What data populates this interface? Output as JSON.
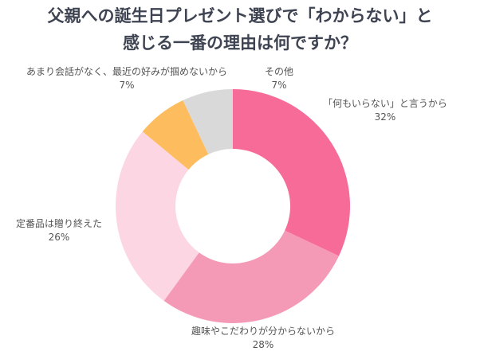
{
  "chart_data": {
    "type": "pie",
    "donut": true,
    "title_lines": [
      "父親への誕生日プレゼント選びで「わからない」と",
      "感じる一番の理由は何ですか？"
    ],
    "slices": [
      {
        "label": "「何もいらない」と言うから",
        "value": 32,
        "value_label": "32%",
        "color": "#F76B98"
      },
      {
        "label": "趣味やこだわりが分からないから",
        "value": 28,
        "value_label": "28%",
        "color": "#F59AB6"
      },
      {
        "label": "定番品は贈り終えた",
        "value": 26,
        "value_label": "26%",
        "color": "#FCD6E2"
      },
      {
        "label": "あまり会話がなく、最近の好みが掴めないから",
        "value": 7,
        "value_label": "7%",
        "color": "#FDBD5E"
      },
      {
        "label": "その他",
        "value": 7,
        "value_label": "7%",
        "color": "#D9D9D9"
      }
    ],
    "start": "top",
    "direction": "clockwise"
  }
}
